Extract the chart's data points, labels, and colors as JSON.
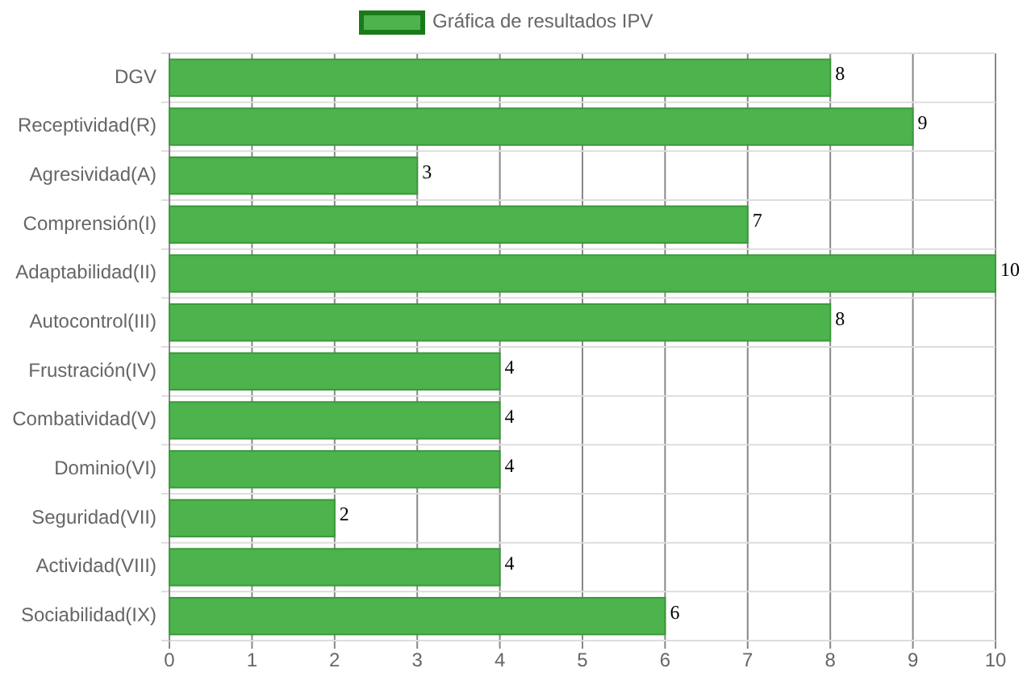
{
  "chart_data": {
    "type": "bar",
    "orientation": "horizontal",
    "categories": [
      "DGV",
      "Receptividad(R)",
      "Agresividad(A)",
      "Comprensión(I)",
      "Adaptabilidad(II)",
      "Autocontrol(III)",
      "Frustración(IV)",
      "Combatividad(V)",
      "Dominio(VI)",
      "Seguridad(VII)",
      "Actividad(VIII)",
      "Sociabilidad(IX)"
    ],
    "series": [
      {
        "name": "Gráfica de resultados IPV",
        "color": "#4db34d",
        "values": [
          8,
          9,
          3,
          7,
          10,
          8,
          4,
          4,
          4,
          2,
          4,
          6
        ]
      }
    ],
    "xlim": [
      0,
      10
    ],
    "xticks": [
      0,
      1,
      2,
      3,
      4,
      5,
      6,
      7,
      8,
      9,
      10
    ],
    "grid": true,
    "legend": "top",
    "data_labels": true
  }
}
